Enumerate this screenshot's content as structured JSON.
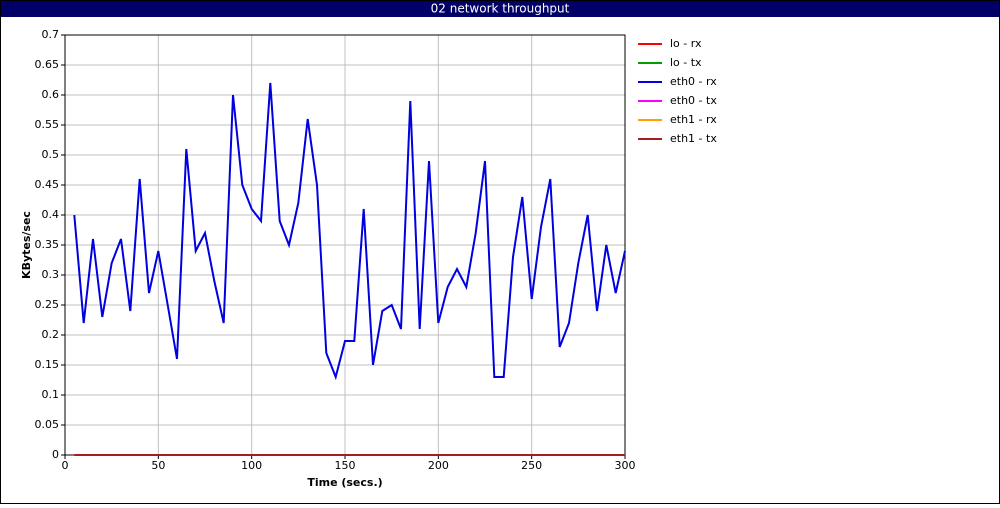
{
  "chart_data": {
    "type": "line",
    "title": "02 network throughput",
    "x_label": "Time (secs.)",
    "y_label": "KBytes/sec",
    "x": [
      5,
      10,
      15,
      20,
      25,
      30,
      35,
      40,
      45,
      50,
      55,
      60,
      65,
      70,
      75,
      80,
      85,
      90,
      95,
      100,
      105,
      110,
      115,
      120,
      125,
      130,
      135,
      140,
      145,
      150,
      155,
      160,
      165,
      170,
      175,
      180,
      185,
      190,
      195,
      200,
      205,
      210,
      215,
      220,
      225,
      230,
      235,
      240,
      245,
      250,
      255,
      260,
      265,
      270,
      275,
      280,
      285,
      290,
      295,
      300
    ],
    "series": [
      {
        "name": "lo - rx",
        "color": "#ff0000",
        "values": [
          0,
          0,
          0,
          0,
          0,
          0,
          0,
          0,
          0,
          0,
          0,
          0,
          0,
          0,
          0,
          0,
          0,
          0,
          0,
          0,
          0,
          0,
          0,
          0,
          0,
          0,
          0,
          0,
          0,
          0,
          0,
          0,
          0,
          0,
          0,
          0,
          0,
          0,
          0,
          0,
          0,
          0,
          0,
          0,
          0,
          0,
          0,
          0,
          0,
          0,
          0,
          0,
          0,
          0,
          0,
          0,
          0,
          0,
          0,
          0
        ]
      },
      {
        "name": "lo - tx",
        "color": "#00a000",
        "values": [
          0,
          0,
          0,
          0,
          0,
          0,
          0,
          0,
          0,
          0,
          0,
          0,
          0,
          0,
          0,
          0,
          0,
          0,
          0,
          0,
          0,
          0,
          0,
          0,
          0,
          0,
          0,
          0,
          0,
          0,
          0,
          0,
          0,
          0,
          0,
          0,
          0,
          0,
          0,
          0,
          0,
          0,
          0,
          0,
          0,
          0,
          0,
          0,
          0,
          0,
          0,
          0,
          0,
          0,
          0,
          0,
          0,
          0,
          0,
          0
        ]
      },
      {
        "name": "eth0 - rx",
        "color": "#0000e0",
        "values": [
          0.4,
          0.22,
          0.36,
          0.23,
          0.32,
          0.36,
          0.24,
          0.46,
          0.27,
          0.34,
          0.25,
          0.16,
          0.51,
          0.34,
          0.37,
          0.29,
          0.22,
          0.6,
          0.45,
          0.41,
          0.39,
          0.62,
          0.39,
          0.35,
          0.42,
          0.56,
          0.45,
          0.17,
          0.13,
          0.19,
          0.19,
          0.41,
          0.15,
          0.24,
          0.25,
          0.21,
          0.59,
          0.21,
          0.49,
          0.22,
          0.28,
          0.31,
          0.28,
          0.37,
          0.49,
          0.13,
          0.13,
          0.33,
          0.43,
          0.26,
          0.38,
          0.46,
          0.18,
          0.22,
          0.32,
          0.4,
          0.24,
          0.35,
          0.27,
          0.34
        ]
      },
      {
        "name": "eth0 - tx",
        "color": "#ff00ff",
        "values": [
          0,
          0,
          0,
          0,
          0,
          0,
          0,
          0,
          0,
          0,
          0,
          0,
          0,
          0,
          0,
          0,
          0,
          0,
          0,
          0,
          0,
          0,
          0,
          0,
          0,
          0,
          0,
          0,
          0,
          0,
          0,
          0,
          0,
          0,
          0,
          0,
          0,
          0,
          0,
          0,
          0,
          0,
          0,
          0,
          0,
          0,
          0,
          0,
          0,
          0,
          0,
          0,
          0,
          0,
          0,
          0,
          0,
          0,
          0,
          0
        ]
      },
      {
        "name": "eth1 - rx",
        "color": "#ffa000",
        "values": [
          0,
          0,
          0,
          0,
          0,
          0,
          0,
          0,
          0,
          0,
          0,
          0,
          0,
          0,
          0,
          0,
          0,
          0,
          0,
          0,
          0,
          0,
          0,
          0,
          0,
          0,
          0,
          0,
          0,
          0,
          0,
          0,
          0,
          0,
          0,
          0,
          0,
          0,
          0,
          0,
          0,
          0,
          0,
          0,
          0,
          0,
          0,
          0,
          0,
          0,
          0,
          0,
          0,
          0,
          0,
          0,
          0,
          0,
          0,
          0
        ]
      },
      {
        "name": "eth1 - tx",
        "color": "#a02020",
        "values": [
          0,
          0,
          0,
          0,
          0,
          0,
          0,
          0,
          0,
          0,
          0,
          0,
          0,
          0,
          0,
          0,
          0,
          0,
          0,
          0,
          0,
          0,
          0,
          0,
          0,
          0,
          0,
          0,
          0,
          0,
          0,
          0,
          0,
          0,
          0,
          0,
          0,
          0,
          0,
          0,
          0,
          0,
          0,
          0,
          0,
          0,
          0,
          0,
          0,
          0,
          0,
          0,
          0,
          0,
          0,
          0,
          0,
          0,
          0,
          0
        ]
      }
    ],
    "xlim": [
      0,
      300
    ],
    "xticks": [
      0,
      50,
      100,
      150,
      200,
      250,
      300
    ],
    "ylim": [
      0,
      0.7
    ],
    "yticks": [
      0,
      0.05,
      0.1,
      0.15,
      0.2,
      0.25,
      0.3,
      0.35,
      0.4,
      0.45,
      0.5,
      0.55,
      0.6,
      0.65,
      0.7
    ],
    "grid": true,
    "legend": "right"
  }
}
